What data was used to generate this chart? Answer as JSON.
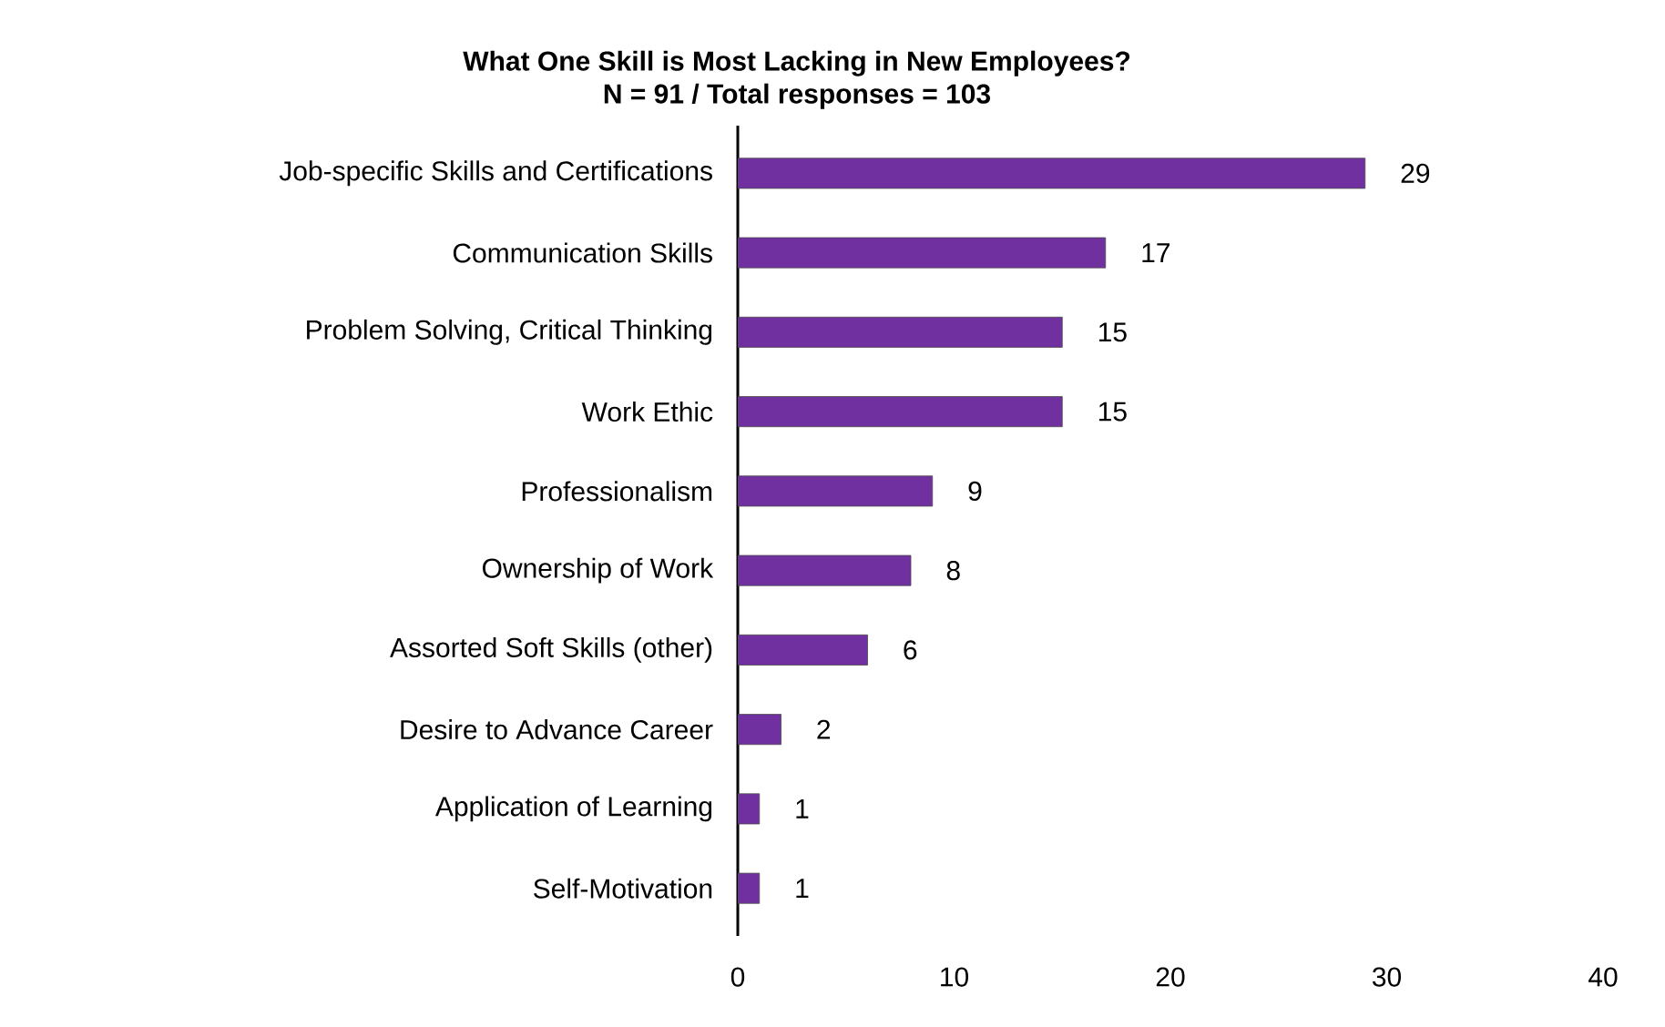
{
  "chart_data": {
    "type": "bar",
    "orientation": "horizontal",
    "title": "What One Skill is Most Lacking in New Employees?",
    "subtitle": "N = 91 / Total responses = 103",
    "categories": [
      "Job-specific Skills and Certifications",
      "Communication Skills",
      "Problem Solving, Critical Thinking",
      "Work Ethic",
      "Professionalism",
      "Ownership of Work",
      "Assorted Soft Skills (other)",
      "Desire to Advance Career",
      "Application of Learning",
      "Self-Motivation"
    ],
    "values": [
      29,
      17,
      15,
      15,
      9,
      8,
      6,
      2,
      1,
      1
    ],
    "color": "#7030a0",
    "xlim": [
      0,
      40
    ],
    "xticks": [
      0,
      10,
      20,
      30,
      40
    ],
    "data_labels": true,
    "grid": false
  }
}
